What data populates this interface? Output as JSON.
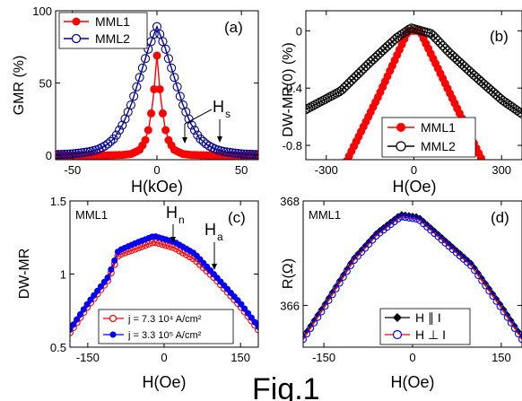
{
  "figure_label": "Fig.1",
  "chart_data": [
    {
      "panel": "(a)",
      "type": "line",
      "xlabel": "H(kOe)",
      "ylabel": "GMR (%)",
      "xlim": [
        -60,
        60
      ],
      "ylim": [
        -3,
        100
      ],
      "xticks": [
        -50,
        0,
        50
      ],
      "yticks": [
        0,
        50,
        100
      ],
      "annotation_main": "H",
      "annotation_sub": "s",
      "legend": "top-left",
      "series": [
        {
          "name": "MML1",
          "color": "#ff0000",
          "marker": "filled-circle",
          "x": [
            -60,
            -30,
            -20,
            -15,
            -10,
            -7,
            -5,
            -3,
            -2,
            -1,
            0,
            1,
            2,
            3,
            5,
            7,
            10,
            15,
            20,
            30,
            60
          ],
          "y": [
            0,
            0,
            0.3,
            1,
            4,
            10,
            18,
            32,
            42,
            55,
            69,
            55,
            42,
            32,
            18,
            10,
            4,
            1,
            0.3,
            0,
            0
          ]
        },
        {
          "name": "MML2",
          "color": "#00008b",
          "marker": "open-circle",
          "x": [
            -60,
            -50,
            -40,
            -35,
            -30,
            -25,
            -20,
            -15,
            -10,
            -5,
            0,
            5,
            10,
            15,
            20,
            25,
            30,
            35,
            40,
            50,
            60
          ],
          "y": [
            0.5,
            1,
            2.5,
            4,
            7,
            12,
            22,
            36,
            55,
            74,
            89,
            74,
            55,
            36,
            22,
            12,
            7,
            4,
            2.5,
            1,
            0.5
          ]
        }
      ]
    },
    {
      "panel": "(b)",
      "type": "line",
      "xlabel": "H(Oe)",
      "ylabel": "DW-MR(0) (%)",
      "xlim": [
        -370,
        370
      ],
      "ylim": [
        -0.9,
        0.14
      ],
      "xticks": [
        -300,
        0,
        300
      ],
      "yticks": [
        -0.8,
        -0.4,
        0.0
      ],
      "legend": "bottom-right",
      "series": [
        {
          "name": "MML1",
          "color": "#ff0000",
          "marker": "filled-circle",
          "x": [
            -370,
            -240,
            -120,
            -20,
            20,
            150,
            280,
            370
          ],
          "y": [
            -1.5,
            -0.95,
            -0.45,
            0.0,
            0.0,
            -0.55,
            -1.1,
            -1.5
          ]
        },
        {
          "name": "MML2",
          "color": "#000000",
          "marker": "open-circle",
          "x": [
            -370,
            -250,
            -150,
            -60,
            -10,
            60,
            120,
            200,
            300,
            370
          ],
          "y": [
            -0.55,
            -0.42,
            -0.22,
            -0.05,
            0.02,
            -0.02,
            -0.15,
            -0.3,
            -0.48,
            -0.58
          ]
        }
      ]
    },
    {
      "panel": "(c)",
      "type": "line",
      "title_label": "MML1",
      "xlabel": "H(Oe)",
      "ylabel": "DW-MR",
      "xlim": [
        -185,
        185
      ],
      "ylim": [
        0.5,
        1.5
      ],
      "xticks": [
        -150,
        0,
        150
      ],
      "yticks": [
        0.5,
        1.0,
        1.5
      ],
      "annotations": [
        {
          "main": "H",
          "sub": "n"
        },
        {
          "main": "H",
          "sub": "a"
        }
      ],
      "legend": "bottom-center",
      "series": [
        {
          "name": "j = 7.3 10⁴ A/cm²",
          "color": "#ff0000",
          "marker": "open-circle",
          "x": [
            -185,
            -150,
            -110,
            -90,
            -50,
            -20,
            0,
            20,
            60,
            100,
            150,
            185
          ],
          "y": [
            0.6,
            0.78,
            0.96,
            1.13,
            1.18,
            1.22,
            1.2,
            1.18,
            1.1,
            0.97,
            0.78,
            0.62
          ]
        },
        {
          "name": "j = 3.3 10⁵ A/cm²",
          "color": "#0000ff",
          "marker": "filled-circle",
          "x": [
            -185,
            -150,
            -110,
            -90,
            -50,
            -20,
            0,
            20,
            60,
            100,
            150,
            185
          ],
          "y": [
            0.62,
            0.8,
            0.98,
            1.16,
            1.22,
            1.26,
            1.24,
            1.22,
            1.14,
            0.99,
            0.8,
            0.64
          ]
        }
      ]
    },
    {
      "panel": "(d)",
      "type": "line",
      "title_label": "MML1",
      "xlabel": "H(Oe)",
      "ylabel": "R(Ω)",
      "xlim": [
        -185,
        185
      ],
      "ylim": [
        365.2,
        368.0
      ],
      "xticks": [
        -150,
        0,
        150
      ],
      "yticks": [
        366,
        368
      ],
      "legend": "bottom-right",
      "series": [
        {
          "name": "H ∥ I",
          "color": "#000000",
          "marker": "filled-diamond",
          "x": [
            -185,
            -150,
            -100,
            -60,
            -20,
            10,
            50,
            100,
            150,
            185
          ],
          "y": [
            365.4,
            366.0,
            366.9,
            367.4,
            367.75,
            367.7,
            367.3,
            366.8,
            366.0,
            365.4
          ]
        },
        {
          "name": "H ⊥ I",
          "color": "#ff0000",
          "marker": "open-circle",
          "x": [
            -185,
            -150,
            -100,
            -60,
            -20,
            10,
            50,
            100,
            150,
            185
          ],
          "y": [
            365.35,
            365.95,
            366.85,
            367.35,
            367.7,
            367.65,
            367.25,
            366.75,
            365.95,
            365.35
          ]
        }
      ]
    }
  ]
}
